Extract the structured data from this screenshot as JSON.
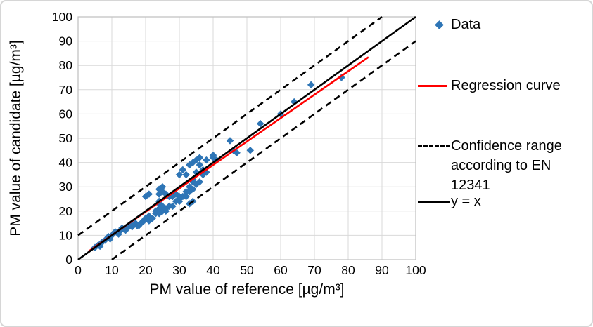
{
  "window": {
    "background": "#FFFFFF",
    "border_color": "#D6D6D6"
  },
  "chart_data": {
    "type": "scatter",
    "xlabel": "PM value of reference [µg/m³]",
    "ylabel": "PM value of candidate [µg/m³]",
    "xlim": [
      0,
      100
    ],
    "ylim": [
      0,
      100
    ],
    "xticks": [
      0,
      10,
      20,
      30,
      40,
      50,
      60,
      70,
      80,
      90,
      100
    ],
    "yticks": [
      0,
      10,
      20,
      30,
      40,
      50,
      60,
      70,
      80,
      90,
      100
    ],
    "grid": true,
    "gridline_color": "#D9D9D9",
    "axis_color": "#BFBFBF",
    "tick_label_color": "#000000",
    "legend_position": "right",
    "series": [
      {
        "name": "Data",
        "kind": "scatter",
        "marker": "diamond",
        "color": "#2E75B6",
        "points": [
          [
            5,
            5
          ],
          [
            6,
            6
          ],
          [
            6.5,
            5.5
          ],
          [
            7,
            7
          ],
          [
            8,
            8
          ],
          [
            9,
            9.5
          ],
          [
            9.5,
            8.5
          ],
          [
            10,
            10
          ],
          [
            11,
            11.5
          ],
          [
            12,
            10.5
          ],
          [
            12.5,
            12
          ],
          [
            13,
            13
          ],
          [
            14,
            12
          ],
          [
            15,
            13.5
          ],
          [
            15.5,
            14.5
          ],
          [
            16,
            13.5
          ],
          [
            17,
            15
          ],
          [
            17.5,
            14
          ],
          [
            18,
            14
          ],
          [
            19,
            15.5
          ],
          [
            19.5,
            16
          ],
          [
            20,
            17
          ],
          [
            20,
            26
          ],
          [
            21,
            16
          ],
          [
            21,
            18
          ],
          [
            21,
            27
          ],
          [
            22,
            17
          ],
          [
            23,
            19
          ],
          [
            23,
            20
          ],
          [
            24,
            19
          ],
          [
            24,
            21
          ],
          [
            24,
            23
          ],
          [
            24,
            24
          ],
          [
            24,
            27
          ],
          [
            24,
            29
          ],
          [
            25,
            20
          ],
          [
            25,
            22
          ],
          [
            25,
            28
          ],
          [
            25,
            30
          ],
          [
            26,
            20
          ],
          [
            26,
            21
          ],
          [
            26,
            27
          ],
          [
            27,
            22
          ],
          [
            27,
            26
          ],
          [
            28,
            22
          ],
          [
            28,
            26
          ],
          [
            29,
            24
          ],
          [
            29,
            27
          ],
          [
            30,
            24
          ],
          [
            30,
            25
          ],
          [
            30,
            26
          ],
          [
            30,
            35
          ],
          [
            31,
            26
          ],
          [
            31,
            37
          ],
          [
            32,
            26
          ],
          [
            32,
            28
          ],
          [
            32,
            35
          ],
          [
            33,
            23
          ],
          [
            33,
            28
          ],
          [
            33,
            30
          ],
          [
            33,
            39
          ],
          [
            34,
            24
          ],
          [
            34,
            29
          ],
          [
            34,
            32
          ],
          [
            34,
            33
          ],
          [
            34,
            40
          ],
          [
            35,
            31
          ],
          [
            35,
            36
          ],
          [
            35,
            41
          ],
          [
            36,
            32
          ],
          [
            36,
            39
          ],
          [
            36,
            42
          ],
          [
            37,
            35
          ],
          [
            37,
            37
          ],
          [
            38,
            36
          ],
          [
            38,
            41
          ],
          [
            40,
            42
          ],
          [
            40,
            43
          ],
          [
            41,
            41
          ],
          [
            45,
            49
          ],
          [
            46,
            45
          ],
          [
            47,
            44
          ],
          [
            51,
            45
          ],
          [
            54,
            56
          ],
          [
            60,
            60
          ],
          [
            64,
            65
          ],
          [
            69,
            72
          ],
          [
            78,
            75
          ]
        ]
      },
      {
        "name": "Regression curve",
        "kind": "line",
        "style": "solid",
        "color": "#FF0000",
        "segments": [
          {
            "x1": 3,
            "y1": 3.3,
            "x2": 86,
            "y2": 83.4
          }
        ]
      },
      {
        "name": "Confidence range according to EN 12341",
        "kind": "line",
        "style": "dashed",
        "color": "#000000",
        "segments": [
          {
            "x1": 0,
            "y1": 10,
            "x2": 90,
            "y2": 100
          },
          {
            "x1": 10,
            "y1": 0,
            "x2": 100,
            "y2": 90
          }
        ]
      },
      {
        "name": "y = x",
        "kind": "line",
        "style": "solid",
        "color": "#000000",
        "segments": [
          {
            "x1": 0,
            "y1": 0,
            "x2": 100,
            "y2": 100
          }
        ]
      }
    ]
  }
}
